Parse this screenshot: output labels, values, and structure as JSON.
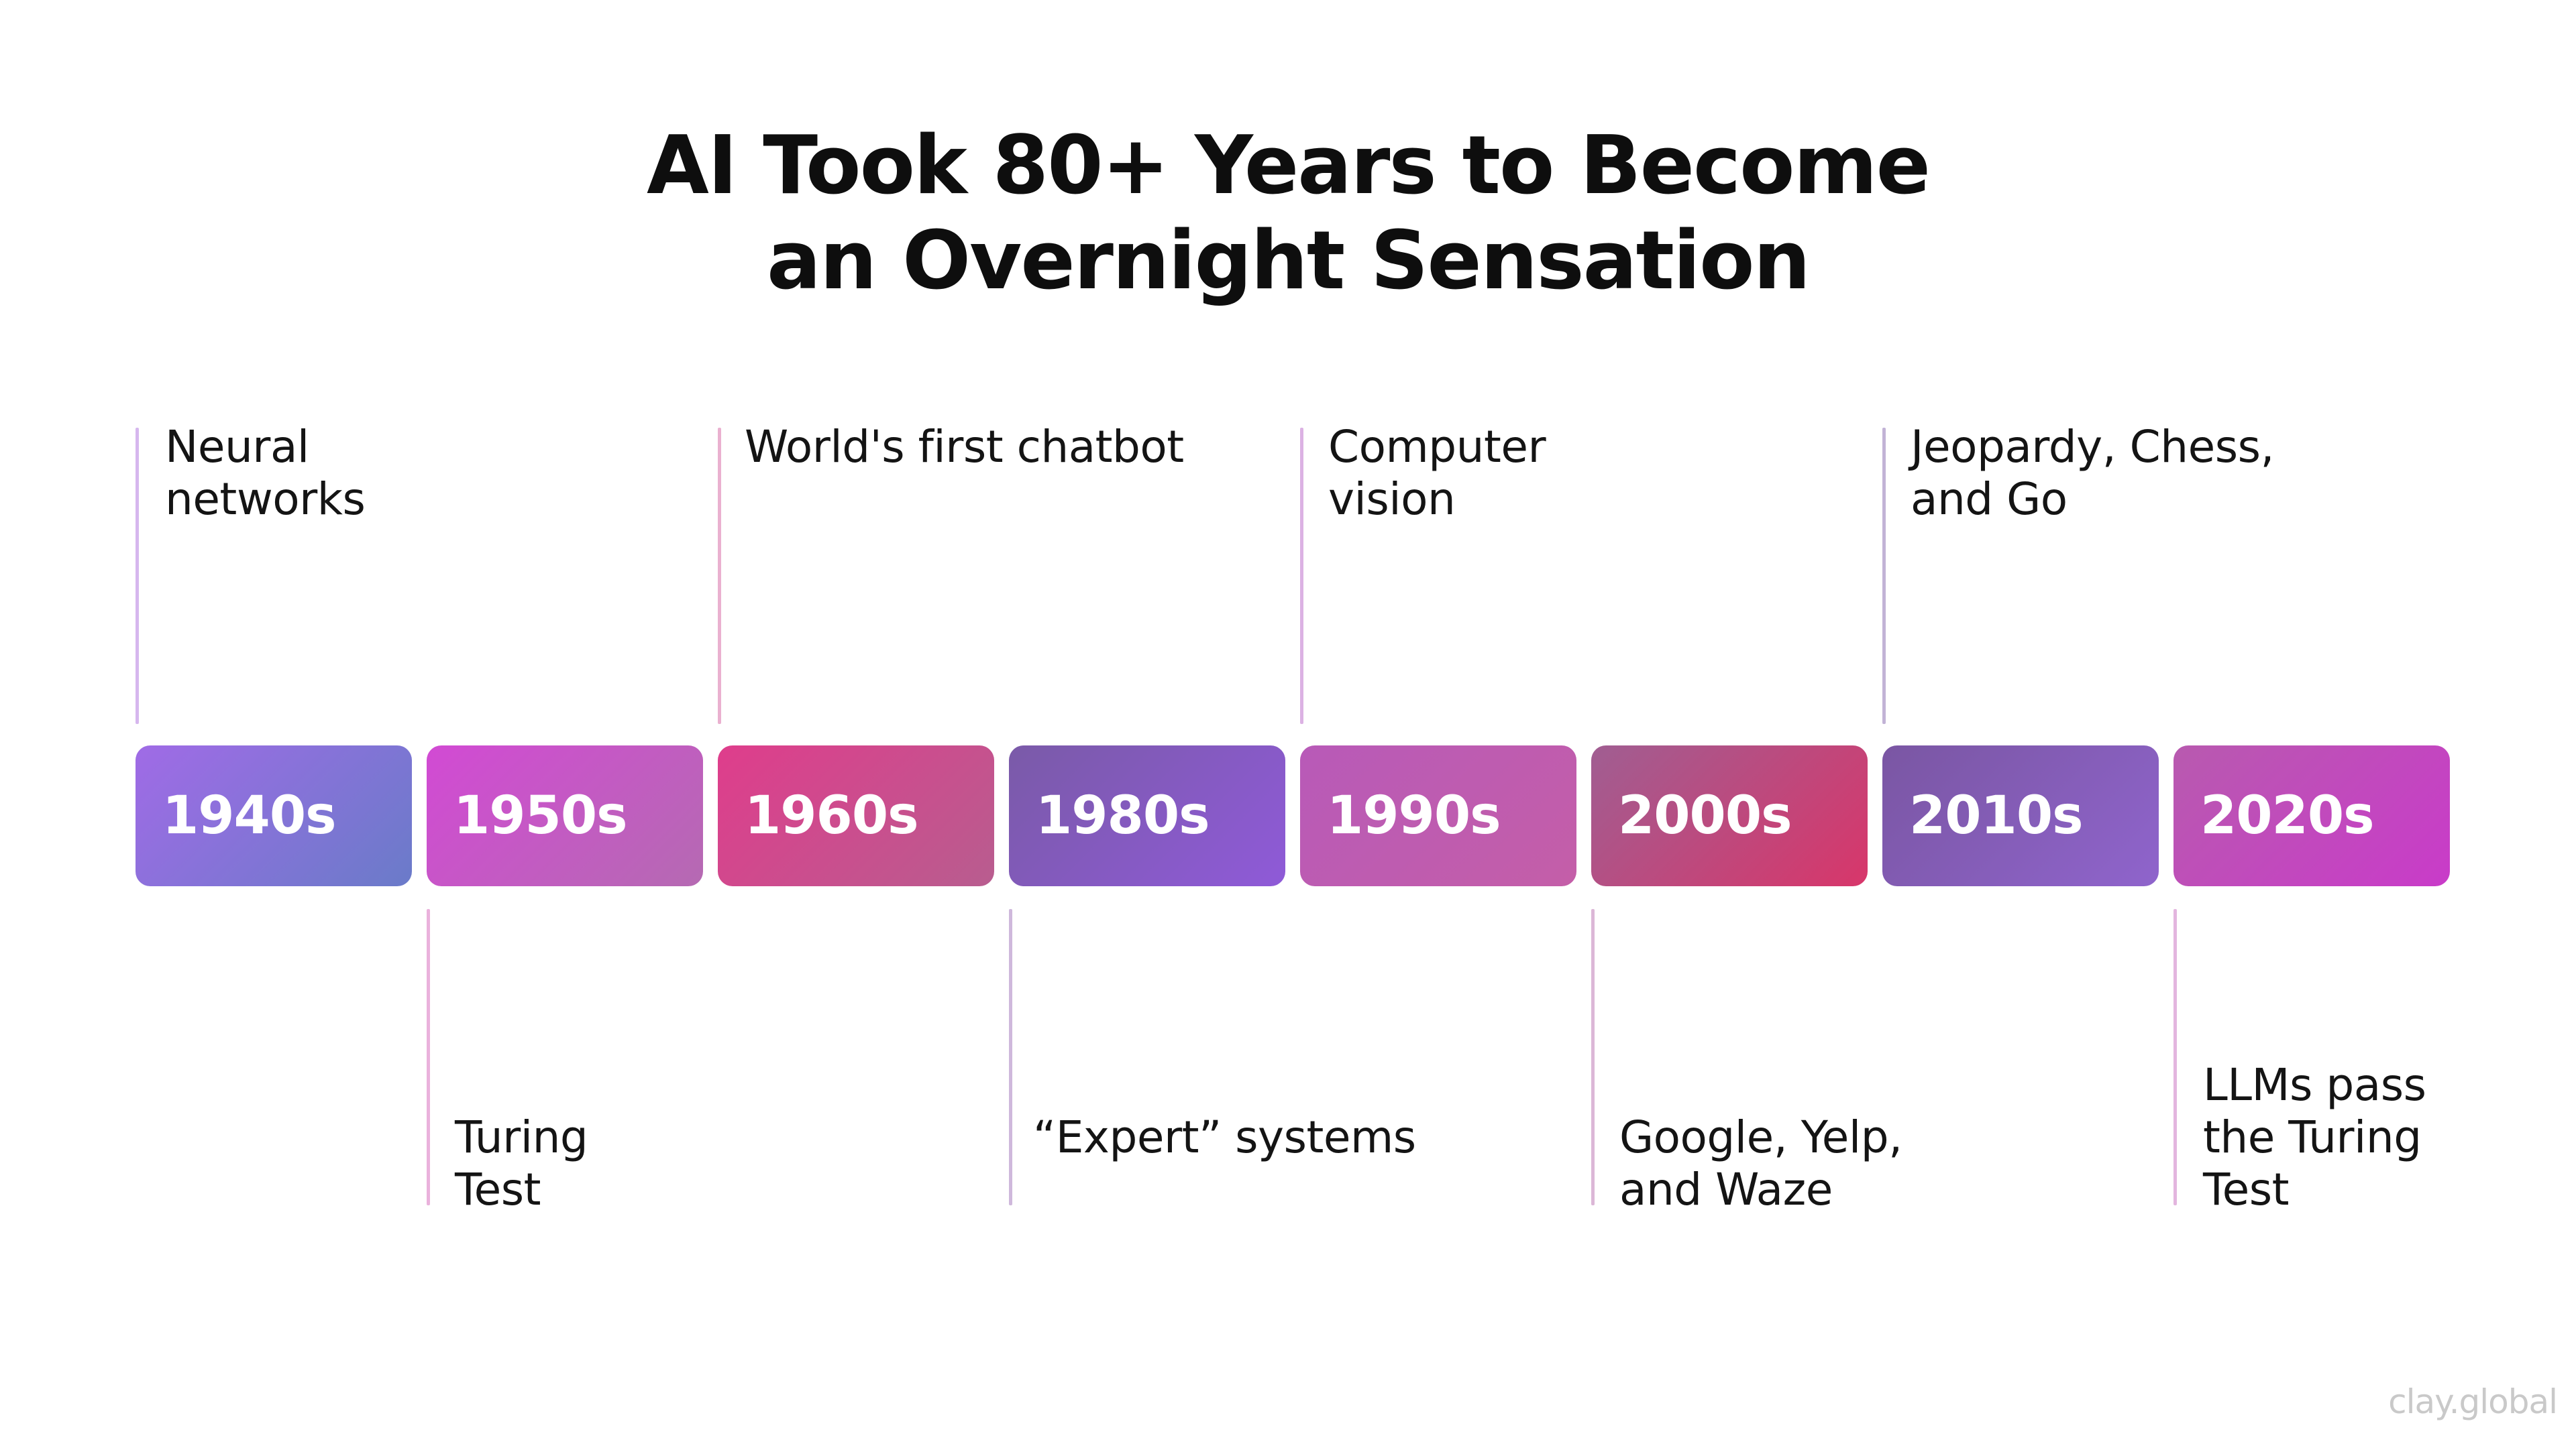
{
  "title": {
    "line1": "AI Took 80+ Years to Become",
    "line2": "an Overnight Sensation"
  },
  "decades": [
    {
      "label": "1940s",
      "gradient": [
        "#a06be6",
        "#6a7bc9"
      ]
    },
    {
      "label": "1950s",
      "gradient": [
        "#d24ad4",
        "#b56ab2"
      ]
    },
    {
      "label": "1960s",
      "gradient": [
        "#df3d8c",
        "#b85d8f"
      ]
    },
    {
      "label": "1980s",
      "gradient": [
        "#7a5aa8",
        "#8f5ad8"
      ]
    },
    {
      "label": "1990s",
      "gradient": [
        "#b85ab8",
        "#c45ea8"
      ]
    },
    {
      "label": "2000s",
      "gradient": [
        "#a05e92",
        "#d8366a"
      ]
    },
    {
      "label": "2010s",
      "gradient": [
        "#7a56a3",
        "#8f64cc"
      ]
    },
    {
      "label": "2020s",
      "gradient": [
        "#b85aaf",
        "#c93bc9"
      ]
    }
  ],
  "milestones_above": [
    {
      "decade": "1940s",
      "lines": [
        "Neural",
        "networks"
      ],
      "line_color": "#d6b7ee"
    },
    {
      "decade": "1960s",
      "lines": [
        "World's first chatbot"
      ],
      "line_color": "#eab1d0"
    },
    {
      "decade": "1990s",
      "lines": [
        "Computer",
        "vision"
      ],
      "line_color": "#dcb2e3"
    },
    {
      "decade": "2010s",
      "lines": [
        "Jeopardy, Chess,",
        "and Go"
      ],
      "line_color": "#c2b3d6"
    }
  ],
  "milestones_below": [
    {
      "decade": "1950s",
      "lines": [
        "Turing",
        "Test"
      ],
      "line_color": "#eab2dc"
    },
    {
      "decade": "1980s",
      "lines": [
        "“Expert” systems"
      ],
      "line_color": "#cfb8dc"
    },
    {
      "decade": "2000s",
      "lines": [
        "Google, Yelp,",
        "and Waze"
      ],
      "line_color": "#dcb7d7"
    },
    {
      "decade": "2020s",
      "lines": [
        "LLMs pass",
        "the Turing",
        "Test"
      ],
      "line_color": "#e3b6df"
    }
  ],
  "watermark": "clay.global"
}
